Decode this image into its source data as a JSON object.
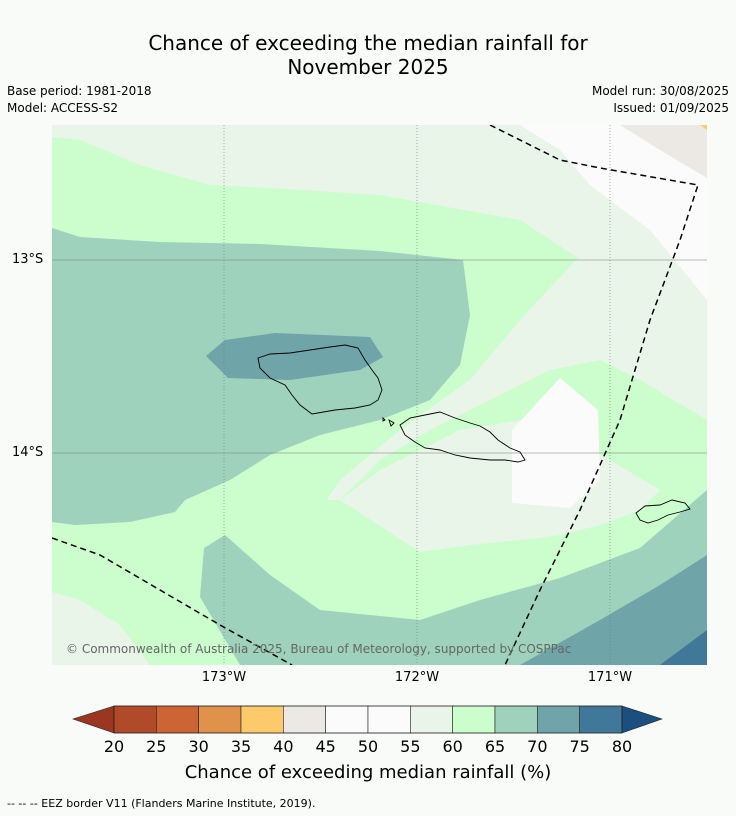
{
  "title_line1": "Chance of exceeding the median rainfall for",
  "title_line2": "November 2025",
  "base_period": "Base period: 1981-2018",
  "model": "Model: ACCESS-S2",
  "model_run": "Model run: 30/08/2025",
  "issued": "Issued: 01/09/2025",
  "lat_labels": [
    "13°S",
    "14°S"
  ],
  "lon_labels": [
    "173°W",
    "172°W",
    "171°W"
  ],
  "copyright": "© Commonwealth of Australia 2025, Bureau of Meteorology, supported by COSPPac",
  "colorbar": {
    "title": "Chance of exceeding median rainfall (%)",
    "ticks": [
      "20",
      "25",
      "30",
      "35",
      "40",
      "45",
      "50",
      "55",
      "60",
      "65",
      "70",
      "75",
      "80"
    ],
    "colors": [
      "#b04a28",
      "#cd6433",
      "#e0924a",
      "#fcca6a",
      "#ece9e4",
      "#fafbfa",
      "#fafbfa",
      "#eaf5ea",
      "#ccfdcc",
      "#9ed2bd",
      "#6fa5a8",
      "#407899"
    ],
    "under_color": "#9b3720",
    "over_color": "#1a4f80"
  },
  "legend_footer": "--  --  -- EEZ border V11 (Flanders Marine Institute, 2019)."
}
